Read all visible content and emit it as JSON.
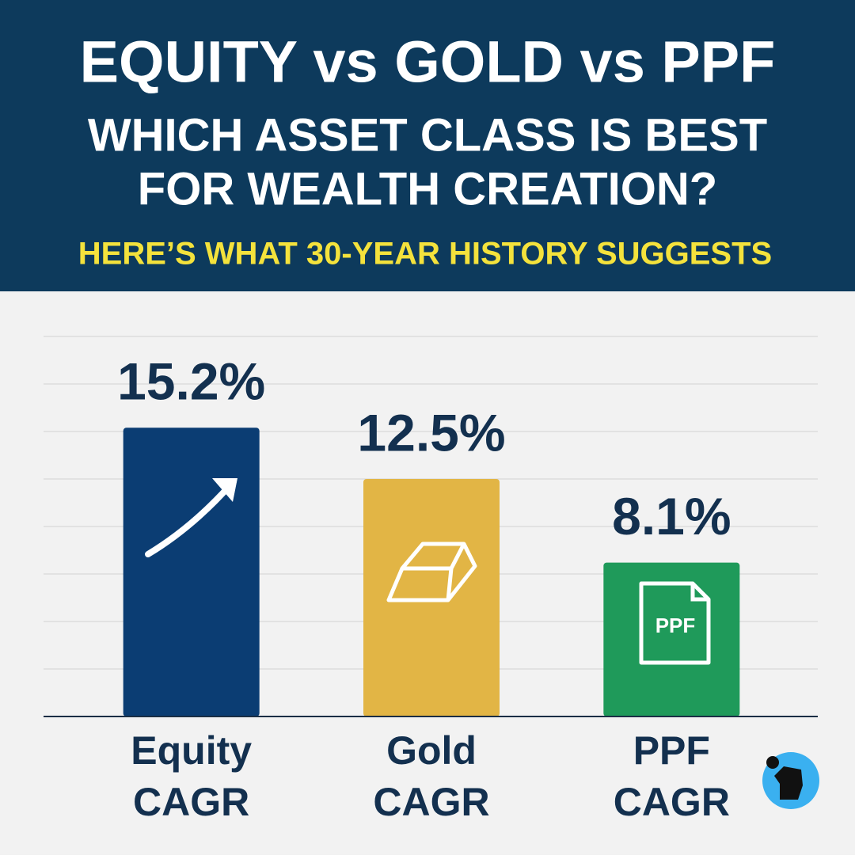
{
  "chart_data": {
    "type": "bar",
    "title": "EQUITY vs GOLD vs PPF",
    "subtitle": [
      "WHICH ASSET CLASS IS BEST",
      "FOR WEALTH CREATION?"
    ],
    "tagline": "HERE’S WHAT 30-YEAR HISTORY SUGGESTS",
    "categories": [
      [
        "Equity",
        "CAGR"
      ],
      [
        "Gold",
        "CAGR"
      ],
      [
        "PPF",
        "CAGR"
      ]
    ],
    "values": [
      15.2,
      12.5,
      8.1
    ],
    "value_labels": [
      "15.2%",
      "12.5%",
      "8.1%"
    ],
    "colors": [
      "#0b3d73",
      "#e2b545",
      "#1f9a5a"
    ],
    "ylim": [
      0,
      20
    ],
    "yticks": [
      2.5,
      5,
      7.5,
      10,
      12.5,
      15,
      17.5,
      20
    ],
    "grid": true
  }
}
